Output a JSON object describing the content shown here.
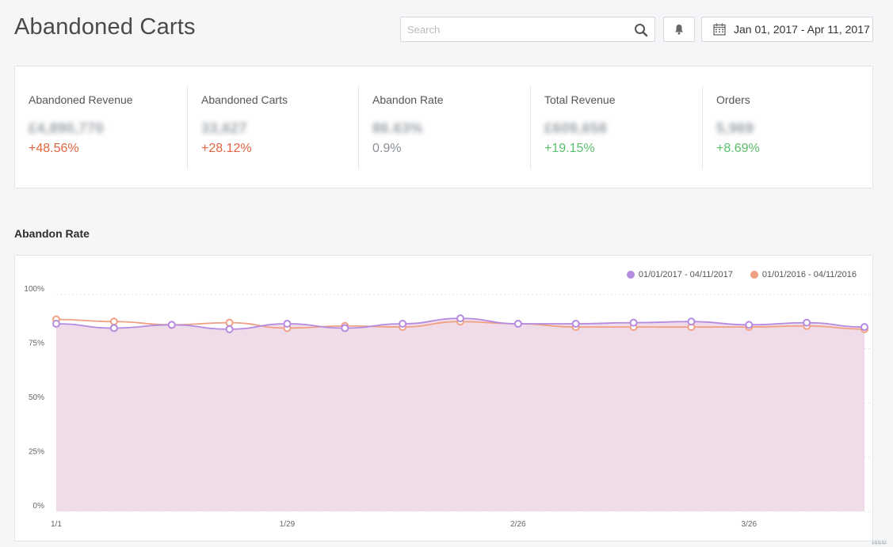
{
  "header": {
    "title": "Abandoned Carts",
    "search_placeholder": "Search",
    "date_range": "Jan 01, 2017 - Apr 11, 2017"
  },
  "stats": [
    {
      "label": "Abandoned Revenue",
      "value": "£4,890,770",
      "change": "+48.56%",
      "tone": "red"
    },
    {
      "label": "Abandoned Carts",
      "value": "33,627",
      "change": "+28.12%",
      "tone": "red"
    },
    {
      "label": "Abandon Rate",
      "value": "86.63%",
      "change": "0.9%",
      "tone": "gray"
    },
    {
      "label": "Total Revenue",
      "value": "£609,658",
      "change": "+19.15%",
      "tone": "green"
    },
    {
      "label": "Orders",
      "value": "5,969",
      "change": "+8.69%",
      "tone": "green"
    }
  ],
  "colors": {
    "red": "#e1643f",
    "green": "#59bf6b",
    "gray": "#8a8f96",
    "series_current": "#b48be0",
    "series_previous": "#f0a084",
    "area_fill": "#f0dce9"
  },
  "section": {
    "title": "Abandon Rate"
  },
  "chart_data": {
    "type": "line",
    "title": "",
    "xlabel": "",
    "ylabel": "",
    "ylim": [
      0,
      100
    ],
    "y_ticks": [
      "0%",
      "25%",
      "50%",
      "75%",
      "100%"
    ],
    "x_tick_labels": [
      {
        "label": "1/1",
        "index": 0
      },
      {
        "label": "1/29",
        "index": 4
      },
      {
        "label": "2/26",
        "index": 8
      },
      {
        "label": "3/26",
        "index": 12
      }
    ],
    "x_count": 15,
    "grid": true,
    "legend_position": "top-right",
    "series": [
      {
        "name": "01/01/2017 - 04/11/2017",
        "color": "#b48be0",
        "values": [
          86.5,
          84.5,
          86.0,
          84.0,
          86.5,
          84.5,
          86.5,
          89.0,
          86.5,
          86.5,
          87.0,
          87.5,
          86.0,
          87.0,
          85.0
        ]
      },
      {
        "name": "01/01/2016 - 04/11/2016",
        "color": "#f0a084",
        "values": [
          88.5,
          87.5,
          86.0,
          87.0,
          84.5,
          85.5,
          85.0,
          87.5,
          86.5,
          85.0,
          85.0,
          85.0,
          85.0,
          85.5,
          84.0
        ]
      }
    ]
  },
  "footer": {
    "mark": "µµµµ"
  }
}
